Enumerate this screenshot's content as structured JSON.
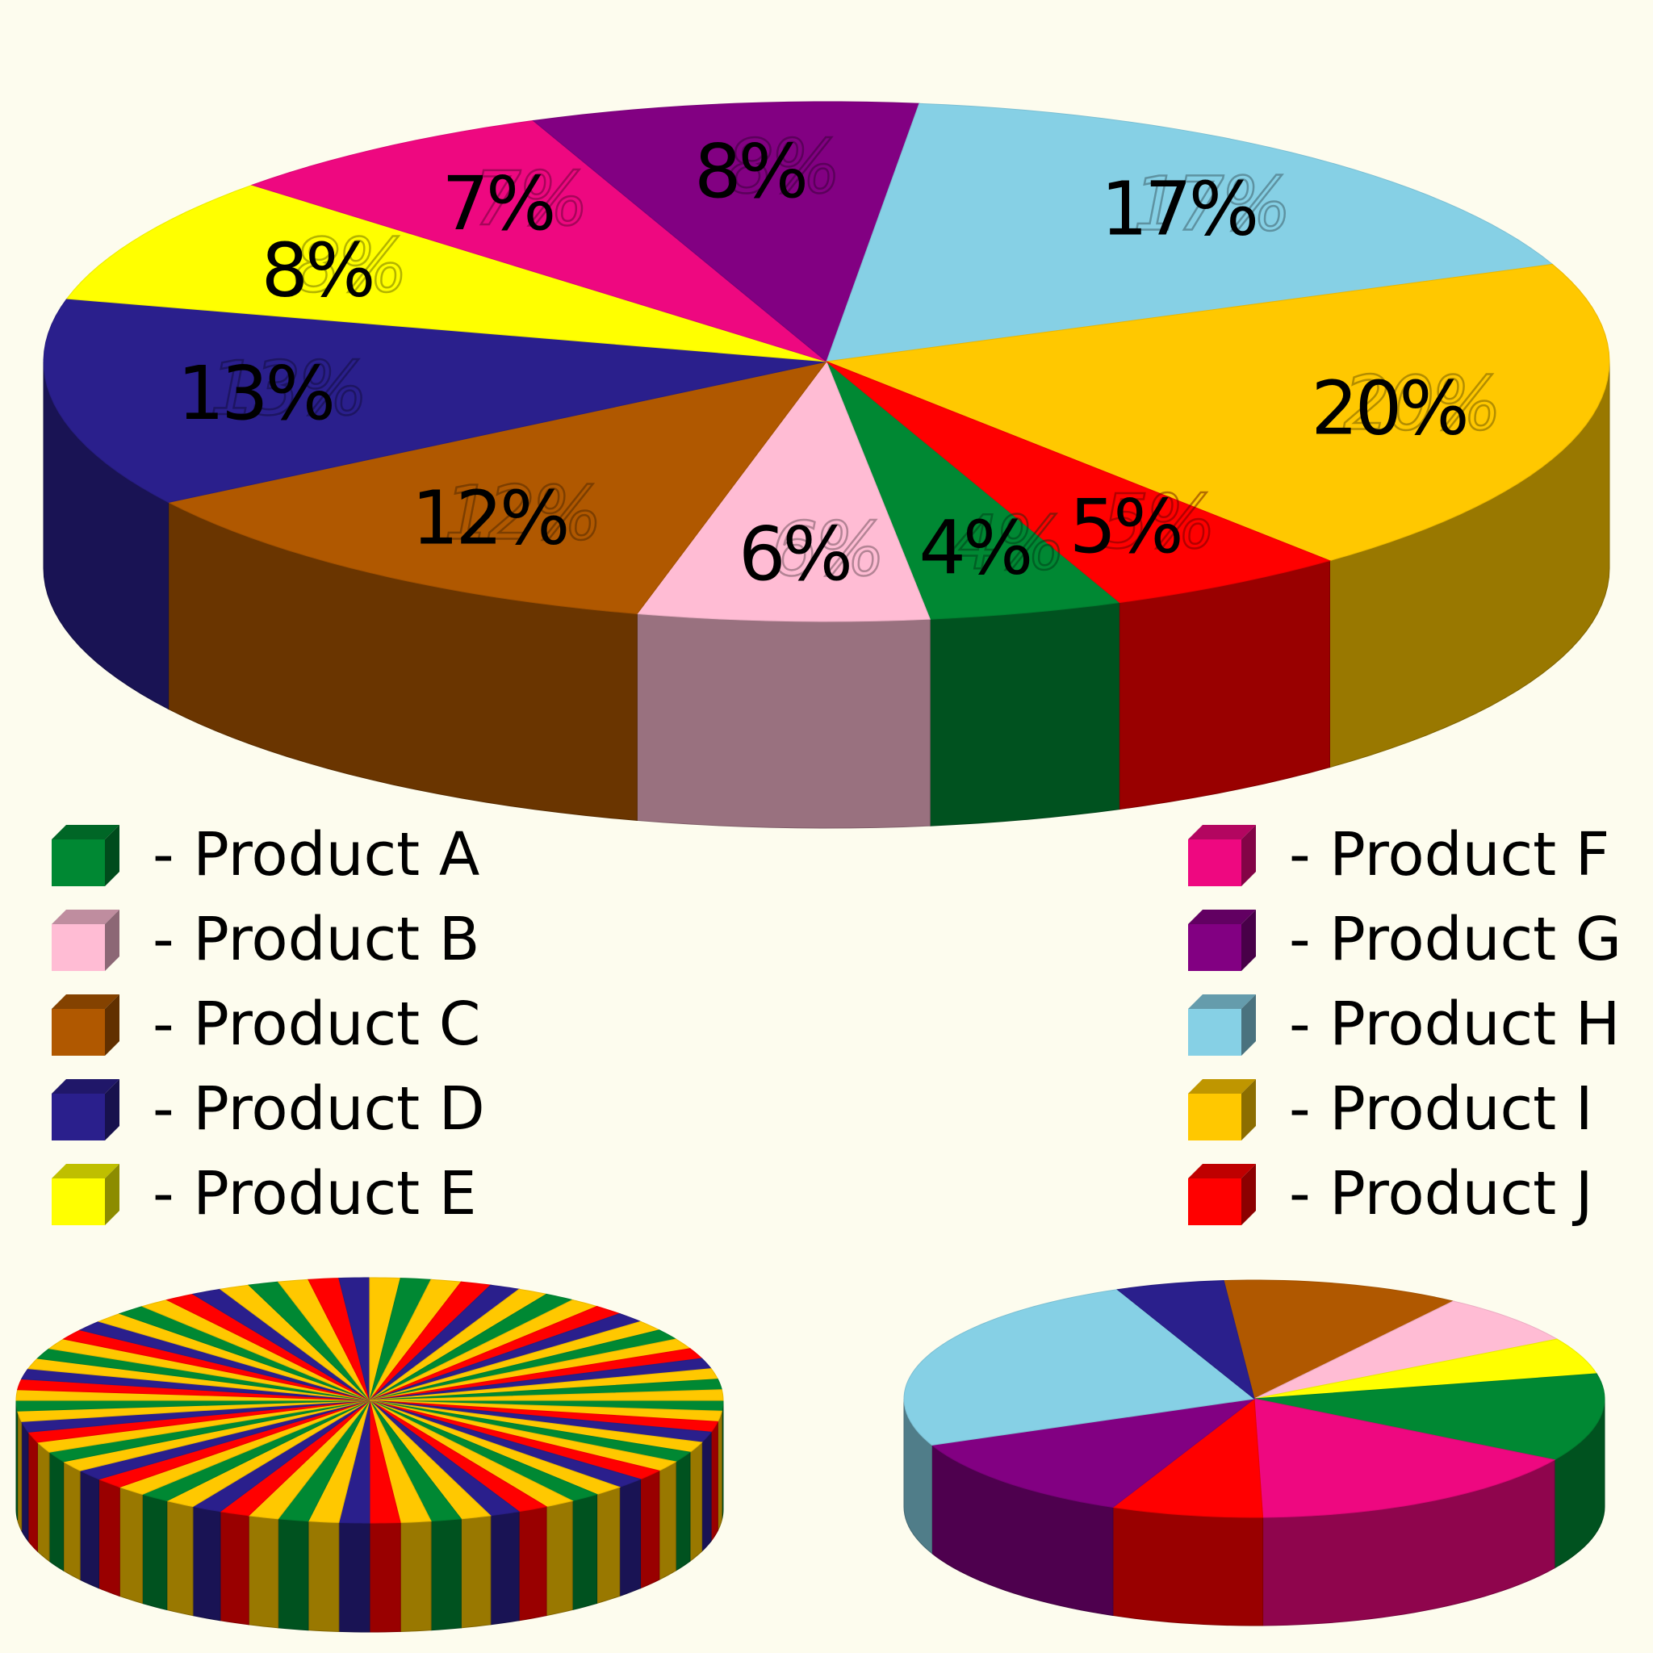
{
  "chart_data": [
    {
      "type": "pie",
      "style": "3d",
      "title": "",
      "categories": [
        "Product A",
        "Product B",
        "Product C",
        "Product D",
        "Product E",
        "Product F",
        "Product G",
        "Product H",
        "Product I",
        "Product J"
      ],
      "values": [
        4,
        6,
        12,
        13,
        8,
        7,
        8,
        17,
        20,
        5
      ],
      "data_labels": [
        "4%",
        "6%",
        "12%",
        "13%",
        "8%",
        "7%",
        "8%",
        "17%",
        "20%",
        "5%"
      ],
      "colors": {
        "Product A": "#008833",
        "Product B": "#ffbcd4",
        "Product C": "#b05800",
        "Product D": "#2a1f8c",
        "Product E": "#ffff00",
        "Product F": "#ee0880",
        "Product G": "#820082",
        "Product H": "#86d0e5",
        "Product I": "#ffc800",
        "Product J": "#ff0000"
      },
      "legend": {
        "placement": "bottom",
        "left_items": [
          {
            "label": "- Product A",
            "category": "Product A"
          },
          {
            "label": "- Product B",
            "category": "Product B"
          },
          {
            "label": "- Product C",
            "category": "Product C"
          },
          {
            "label": "- Product D",
            "category": "Product D"
          },
          {
            "label": "- Product E",
            "category": "Product E"
          }
        ],
        "right_items": [
          {
            "label": "- Product F",
            "category": "Product F"
          },
          {
            "label": "- Product G",
            "category": "Product G"
          },
          {
            "label": "- Product H",
            "category": "Product H"
          },
          {
            "label": "- Product I",
            "category": "Product I"
          },
          {
            "label": "- Product J",
            "category": "Product J"
          }
        ]
      }
    },
    {
      "type": "pie",
      "style": "3d",
      "description_values": "72 equal stripes cycling through five colors",
      "slice_count": 72,
      "cycle_colors": [
        "#008833",
        "#ffc800",
        "#ff0000",
        "#2a1f8c",
        "#ffc800"
      ]
    },
    {
      "type": "pie",
      "style": "3d",
      "categories": [
        "Product C",
        "Product B",
        "Product E",
        "Product A",
        "Product F",
        "Product J",
        "Product G",
        "Product H",
        "Product D"
      ],
      "values": [
        11,
        7,
        5,
        12,
        16,
        7,
        12,
        25,
        5
      ],
      "colors": [
        "#b05800",
        "#ffbcd4",
        "#ffff00",
        "#008833",
        "#ee0880",
        "#ff0000",
        "#820082",
        "#86d0e5",
        "#2a1f8c"
      ]
    }
  ]
}
